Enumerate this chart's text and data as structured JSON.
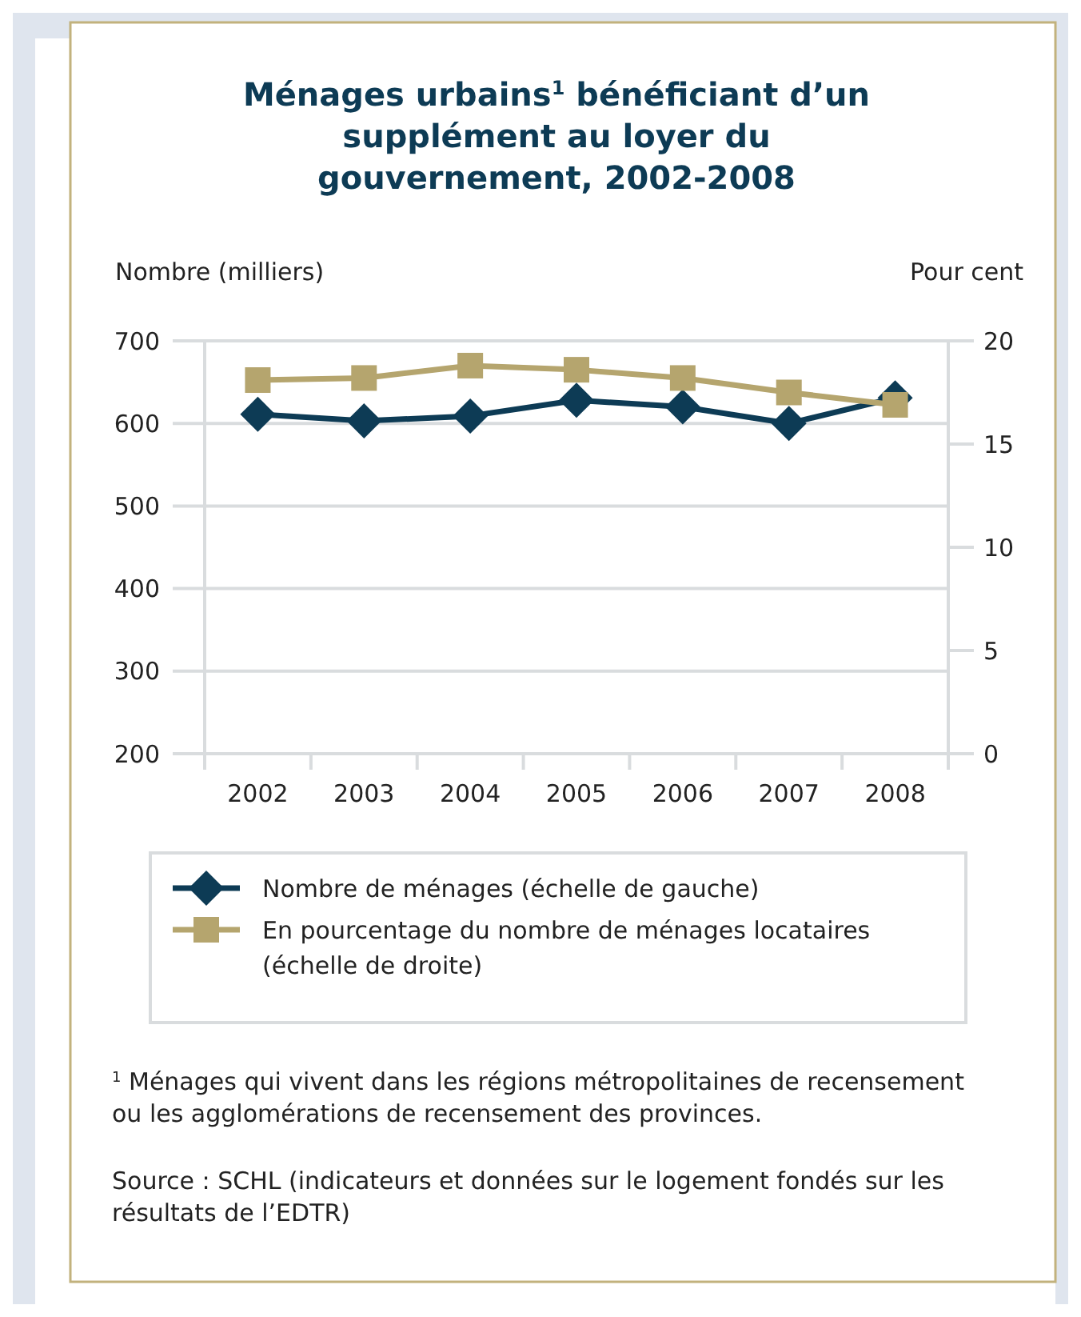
{
  "chart_data": {
    "type": "line",
    "title": "Ménages urbains$^{1}$ bénéficiant d’un supplément au loyer du gouvernement, 2002-2008",
    "ylabel": "Nombre (milliers)",
    "y2label": "Pour cent",
    "categories": [
      "2002",
      "2003",
      "2004",
      "2005",
      "2006",
      "2007",
      "2008"
    ],
    "series": [
      {
        "name": "Nombre de ménages (échelle de gauche)",
        "color": "#0d3b55",
        "marker": "diamond",
        "values": [
          611,
          603,
          609,
          628,
          620,
          600,
          631
        ]
      },
      {
        "name": "En pourcentage du nombre de ménages locataires (échelle de droite)",
        "color": "#b5a56e",
        "marker": "square",
        "axis": "y2",
        "values": [
          18.1,
          18.2,
          18.8,
          18.6,
          18.2,
          17.5,
          16.9
        ]
      }
    ],
    "ylim": [
      200,
      700
    ],
    "yticks": [
      200,
      300,
      400,
      500,
      600,
      700
    ],
    "y2lim": [
      0,
      20
    ],
    "y2ticks": [
      0,
      5,
      10,
      15,
      20
    ],
    "grid": "y",
    "legend": "bottom",
    "annotations": [
      "$^{1}$ Ménages qui vivent dans les régions métropolitaines de recensement ou les agglomérations de recensement des provinces.",
      "Source : SCHL (indicateurs et données sur le logement fondés sur les résultats de l’EDTR)"
    ]
  }
}
